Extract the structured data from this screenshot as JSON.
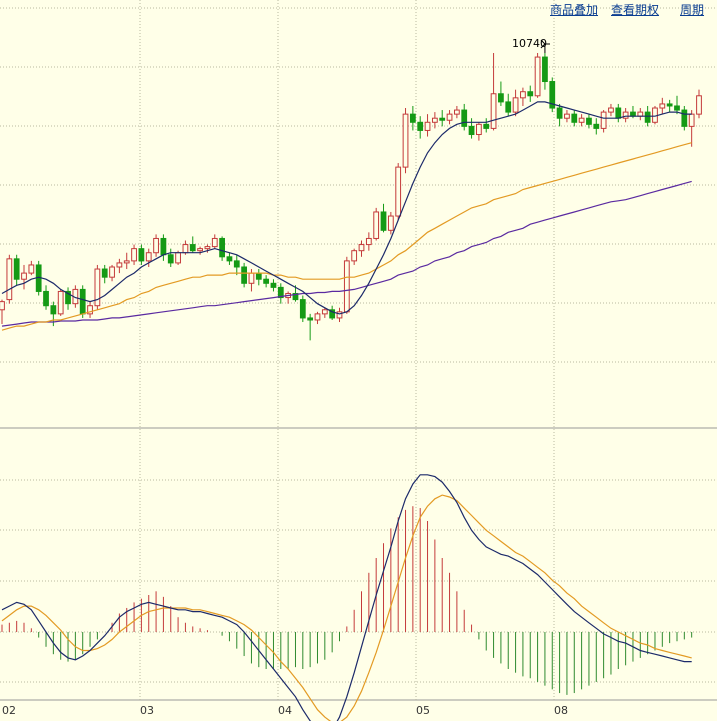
{
  "toolbar": {
    "overlay_label": "商品叠加",
    "period_view_label": "查看期权",
    "period_label": "周期"
  },
  "colors": {
    "background": "#ffffe8",
    "grid": "#b9b9a0",
    "up": "#c43a3a",
    "down": "#159a15",
    "ma_short": "#1c2a6a",
    "ma_mid": "#e39a23",
    "ma_long": "#5a2aa0",
    "macd_dif": "#1c2a6a",
    "macd_dea": "#e39a23",
    "macd_pos": "#c43a3a",
    "macd_neg": "#2e8a2e"
  },
  "chart_data": {
    "type": "candlestick",
    "x_tick_labels": [
      "02",
      "03",
      "04",
      "05",
      "08"
    ],
    "price_ylim": [
      8900,
      11000
    ],
    "annotation": {
      "text": "10740",
      "value": 10740
    },
    "candles": [
      [
        9480,
        9530,
        9410,
        9520
      ],
      [
        9530,
        9750,
        9510,
        9730
      ],
      [
        9730,
        9750,
        9600,
        9630
      ],
      [
        9630,
        9700,
        9580,
        9660
      ],
      [
        9660,
        9720,
        9650,
        9700
      ],
      [
        9700,
        9720,
        9550,
        9570
      ],
      [
        9570,
        9600,
        9480,
        9500
      ],
      [
        9500,
        9520,
        9400,
        9460
      ],
      [
        9460,
        9580,
        9450,
        9570
      ],
      [
        9570,
        9590,
        9480,
        9510
      ],
      [
        9510,
        9600,
        9490,
        9580
      ],
      [
        9580,
        9600,
        9440,
        9460
      ],
      [
        9460,
        9520,
        9440,
        9500
      ],
      [
        9500,
        9700,
        9480,
        9680
      ],
      [
        9680,
        9700,
        9610,
        9640
      ],
      [
        9640,
        9700,
        9620,
        9690
      ],
      [
        9690,
        9730,
        9660,
        9710
      ],
      [
        9710,
        9760,
        9680,
        9720
      ],
      [
        9720,
        9800,
        9700,
        9780
      ],
      [
        9780,
        9800,
        9700,
        9720
      ],
      [
        9720,
        9780,
        9690,
        9760
      ],
      [
        9760,
        9850,
        9740,
        9830
      ],
      [
        9830,
        9850,
        9720,
        9750
      ],
      [
        9750,
        9780,
        9690,
        9710
      ],
      [
        9710,
        9770,
        9700,
        9760
      ],
      [
        9760,
        9820,
        9750,
        9800
      ],
      [
        9800,
        9840,
        9760,
        9770
      ],
      [
        9770,
        9790,
        9750,
        9780
      ],
      [
        9780,
        9800,
        9760,
        9790
      ],
      [
        9790,
        9850,
        9780,
        9830
      ],
      [
        9830,
        9840,
        9720,
        9740
      ],
      [
        9740,
        9760,
        9700,
        9720
      ],
      [
        9720,
        9750,
        9650,
        9690
      ],
      [
        9690,
        9710,
        9590,
        9610
      ],
      [
        9610,
        9680,
        9570,
        9660
      ],
      [
        9660,
        9680,
        9600,
        9630
      ],
      [
        9630,
        9650,
        9590,
        9610
      ],
      [
        9610,
        9630,
        9570,
        9590
      ],
      [
        9590,
        9610,
        9510,
        9540
      ],
      [
        9540,
        9570,
        9510,
        9560
      ],
      [
        9560,
        9600,
        9520,
        9530
      ],
      [
        9530,
        9550,
        9420,
        9440
      ],
      [
        9440,
        9460,
        9330,
        9430
      ],
      [
        9430,
        9470,
        9410,
        9460
      ],
      [
        9460,
        9490,
        9440,
        9480
      ],
      [
        9480,
        9500,
        9430,
        9440
      ],
      [
        9440,
        9490,
        9420,
        9470
      ],
      [
        9470,
        9740,
        9460,
        9720
      ],
      [
        9720,
        9780,
        9700,
        9770
      ],
      [
        9770,
        9820,
        9740,
        9800
      ],
      [
        9800,
        9860,
        9770,
        9830
      ],
      [
        9830,
        9980,
        9820,
        9960
      ],
      [
        9960,
        10000,
        9860,
        9870
      ],
      [
        9870,
        9960,
        9850,
        9940
      ],
      [
        9940,
        10200,
        9920,
        10180
      ],
      [
        10180,
        10470,
        10150,
        10440
      ],
      [
        10440,
        10480,
        10360,
        10400
      ],
      [
        10400,
        10430,
        10320,
        10360
      ],
      [
        10360,
        10440,
        10330,
        10400
      ],
      [
        10400,
        10450,
        10370,
        10420
      ],
      [
        10420,
        10460,
        10380,
        10410
      ],
      [
        10410,
        10460,
        10390,
        10440
      ],
      [
        10440,
        10480,
        10420,
        10460
      ],
      [
        10460,
        10490,
        10360,
        10380
      ],
      [
        10380,
        10420,
        10320,
        10340
      ],
      [
        10340,
        10400,
        10310,
        10390
      ],
      [
        10390,
        10420,
        10350,
        10370
      ],
      [
        10370,
        10740,
        10360,
        10540
      ],
      [
        10540,
        10600,
        10480,
        10500
      ],
      [
        10500,
        10540,
        10430,
        10450
      ],
      [
        10450,
        10560,
        10430,
        10520
      ],
      [
        10520,
        10570,
        10480,
        10550
      ],
      [
        10550,
        10580,
        10500,
        10530
      ],
      [
        10530,
        10740,
        10520,
        10720
      ],
      [
        10720,
        10740,
        10560,
        10600
      ],
      [
        10600,
        10620,
        10450,
        10470
      ],
      [
        10470,
        10490,
        10380,
        10420
      ],
      [
        10420,
        10460,
        10400,
        10440
      ],
      [
        10440,
        10460,
        10380,
        10400
      ],
      [
        10400,
        10440,
        10380,
        10420
      ],
      [
        10420,
        10440,
        10370,
        10390
      ],
      [
        10390,
        10420,
        10340,
        10370
      ],
      [
        10370,
        10460,
        10350,
        10450
      ],
      [
        10450,
        10490,
        10430,
        10470
      ],
      [
        10470,
        10490,
        10400,
        10420
      ],
      [
        10420,
        10470,
        10400,
        10450
      ],
      [
        10450,
        10480,
        10420,
        10430
      ],
      [
        10430,
        10470,
        10410,
        10450
      ],
      [
        10450,
        10480,
        10380,
        10400
      ],
      [
        10400,
        10480,
        10390,
        10470
      ],
      [
        10470,
        10520,
        10440,
        10490
      ],
      [
        10490,
        10510,
        10450,
        10480
      ],
      [
        10480,
        10530,
        10440,
        10460
      ],
      [
        10460,
        10480,
        10360,
        10380
      ],
      [
        10380,
        10460,
        10280,
        10440
      ],
      [
        10440,
        10560,
        10420,
        10530
      ]
    ],
    "ma_short": [
      9560,
      9580,
      9600,
      9610,
      9630,
      9640,
      9630,
      9610,
      9580,
      9560,
      9540,
      9530,
      9520,
      9530,
      9550,
      9580,
      9610,
      9640,
      9660,
      9690,
      9710,
      9730,
      9750,
      9760,
      9760,
      9760,
      9760,
      9760,
      9770,
      9780,
      9770,
      9760,
      9750,
      9730,
      9710,
      9690,
      9670,
      9650,
      9630,
      9610,
      9590,
      9570,
      9540,
      9510,
      9490,
      9470,
      9460,
      9470,
      9500,
      9550,
      9610,
      9680,
      9750,
      9830,
      9920,
      10010,
      10100,
      10180,
      10250,
      10300,
      10340,
      10370,
      10390,
      10400,
      10400,
      10400,
      10400,
      10410,
      10420,
      10430,
      10440,
      10460,
      10480,
      10500,
      10500,
      10490,
      10480,
      10470,
      10460,
      10450,
      10440,
      10430,
      10420,
      10420,
      10420,
      10430,
      10430,
      10430,
      10430,
      10430,
      10440,
      10450,
      10450,
      10440,
      10440
    ],
    "ma_mid": [
      9380,
      9390,
      9400,
      9400,
      9410,
      9420,
      9420,
      9430,
      9430,
      9440,
      9450,
      9460,
      9470,
      9480,
      9490,
      9500,
      9510,
      9530,
      9540,
      9560,
      9570,
      9590,
      9600,
      9610,
      9620,
      9630,
      9640,
      9640,
      9650,
      9650,
      9650,
      9660,
      9660,
      9660,
      9660,
      9660,
      9660,
      9650,
      9650,
      9640,
      9640,
      9630,
      9630,
      9630,
      9630,
      9630,
      9630,
      9640,
      9640,
      9650,
      9660,
      9680,
      9700,
      9720,
      9750,
      9770,
      9800,
      9830,
      9860,
      9880,
      9900,
      9920,
      9940,
      9960,
      9980,
      9990,
      10000,
      10020,
      10030,
      10040,
      10050,
      10070,
      10080,
      10090,
      10100,
      10110,
      10120,
      10130,
      10140,
      10150,
      10160,
      10170,
      10180,
      10190,
      10200,
      10210,
      10220,
      10230,
      10240,
      10250,
      10260,
      10270,
      10280,
      10290,
      10300
    ],
    "ma_long": [
      9400,
      9405,
      9410,
      9415,
      9420,
      9420,
      9420,
      9420,
      9425,
      9425,
      9425,
      9430,
      9430,
      9430,
      9435,
      9440,
      9440,
      9445,
      9450,
      9455,
      9460,
      9465,
      9470,
      9475,
      9480,
      9485,
      9490,
      9495,
      9500,
      9500,
      9505,
      9510,
      9515,
      9520,
      9525,
      9530,
      9535,
      9540,
      9545,
      9550,
      9555,
      9560,
      9560,
      9565,
      9565,
      9570,
      9570,
      9575,
      9580,
      9590,
      9600,
      9610,
      9620,
      9630,
      9650,
      9660,
      9670,
      9690,
      9700,
      9720,
      9730,
      9740,
      9760,
      9770,
      9790,
      9800,
      9810,
      9830,
      9840,
      9860,
      9870,
      9880,
      9900,
      9910,
      9920,
      9930,
      9940,
      9950,
      9960,
      9970,
      9980,
      9990,
      10000,
      10010,
      10015,
      10020,
      10030,
      10040,
      10050,
      10060,
      10070,
      10080,
      10090,
      10100,
      10110
    ],
    "macd_ylim": [
      -1,
      1
    ],
    "macd_dif": [
      0.12,
      0.14,
      0.16,
      0.15,
      0.12,
      0.06,
      0.0,
      -0.06,
      -0.11,
      -0.14,
      -0.15,
      -0.13,
      -0.1,
      -0.06,
      -0.02,
      0.03,
      0.08,
      0.11,
      0.13,
      0.15,
      0.16,
      0.15,
      0.14,
      0.13,
      0.12,
      0.12,
      0.11,
      0.11,
      0.1,
      0.09,
      0.08,
      0.06,
      0.04,
      0.0,
      -0.05,
      -0.1,
      -0.15,
      -0.2,
      -0.25,
      -0.3,
      -0.35,
      -0.42,
      -0.48,
      -0.53,
      -0.55,
      -0.53,
      -0.46,
      -0.35,
      -0.22,
      -0.08,
      0.06,
      0.2,
      0.33,
      0.46,
      0.6,
      0.72,
      0.8,
      0.85,
      0.85,
      0.84,
      0.81,
      0.76,
      0.7,
      0.62,
      0.55,
      0.5,
      0.46,
      0.44,
      0.42,
      0.41,
      0.39,
      0.37,
      0.34,
      0.31,
      0.27,
      0.23,
      0.19,
      0.15,
      0.11,
      0.08,
      0.05,
      0.02,
      -0.01,
      -0.03,
      -0.05,
      -0.06,
      -0.08,
      -0.1,
      -0.11,
      -0.12,
      -0.13,
      -0.14,
      -0.15,
      -0.16,
      -0.16
    ],
    "macd_dea": [
      0.06,
      0.09,
      0.12,
      0.14,
      0.14,
      0.12,
      0.09,
      0.05,
      0.01,
      -0.04,
      -0.08,
      -0.1,
      -0.1,
      -0.09,
      -0.07,
      -0.04,
      0.0,
      0.03,
      0.06,
      0.09,
      0.11,
      0.12,
      0.13,
      0.13,
      0.13,
      0.13,
      0.12,
      0.12,
      0.11,
      0.1,
      0.09,
      0.08,
      0.06,
      0.04,
      0.01,
      -0.03,
      -0.07,
      -0.11,
      -0.16,
      -0.2,
      -0.25,
      -0.3,
      -0.36,
      -0.42,
      -0.46,
      -0.49,
      -0.49,
      -0.46,
      -0.4,
      -0.32,
      -0.22,
      -0.11,
      0.01,
      0.14,
      0.27,
      0.4,
      0.52,
      0.62,
      0.68,
      0.72,
      0.74,
      0.73,
      0.71,
      0.67,
      0.63,
      0.59,
      0.55,
      0.52,
      0.49,
      0.46,
      0.43,
      0.41,
      0.38,
      0.35,
      0.32,
      0.28,
      0.25,
      0.21,
      0.18,
      0.14,
      0.11,
      0.08,
      0.05,
      0.02,
      0.0,
      -0.02,
      -0.04,
      -0.06,
      -0.07,
      -0.09,
      -0.1,
      -0.11,
      -0.12,
      -0.13,
      -0.14
    ],
    "macd_hist": [
      0.04,
      0.05,
      0.06,
      0.05,
      0.02,
      -0.03,
      -0.08,
      -0.12,
      -0.15,
      -0.16,
      -0.15,
      -0.12,
      -0.08,
      -0.04,
      0.0,
      0.05,
      0.1,
      0.13,
      0.16,
      0.18,
      0.2,
      0.22,
      0.19,
      0.14,
      0.08,
      0.05,
      0.03,
      0.02,
      0.01,
      0.0,
      -0.02,
      -0.05,
      -0.09,
      -0.13,
      -0.17,
      -0.19,
      -0.2,
      -0.2,
      -0.2,
      -0.2,
      -0.19,
      -0.2,
      -0.19,
      -0.17,
      -0.15,
      -0.11,
      -0.05,
      0.03,
      0.12,
      0.22,
      0.32,
      0.4,
      0.48,
      0.56,
      0.62,
      0.66,
      0.68,
      0.67,
      0.6,
      0.5,
      0.4,
      0.32,
      0.22,
      0.12,
      0.04,
      -0.04,
      -0.1,
      -0.14,
      -0.17,
      -0.2,
      -0.22,
      -0.24,
      -0.25,
      -0.27,
      -0.29,
      -0.31,
      -0.33,
      -0.34,
      -0.33,
      -0.31,
      -0.29,
      -0.27,
      -0.25,
      -0.23,
      -0.2,
      -0.18,
      -0.16,
      -0.14,
      -0.12,
      -0.1,
      -0.08,
      -0.06,
      -0.05,
      -0.04,
      -0.03
    ]
  }
}
